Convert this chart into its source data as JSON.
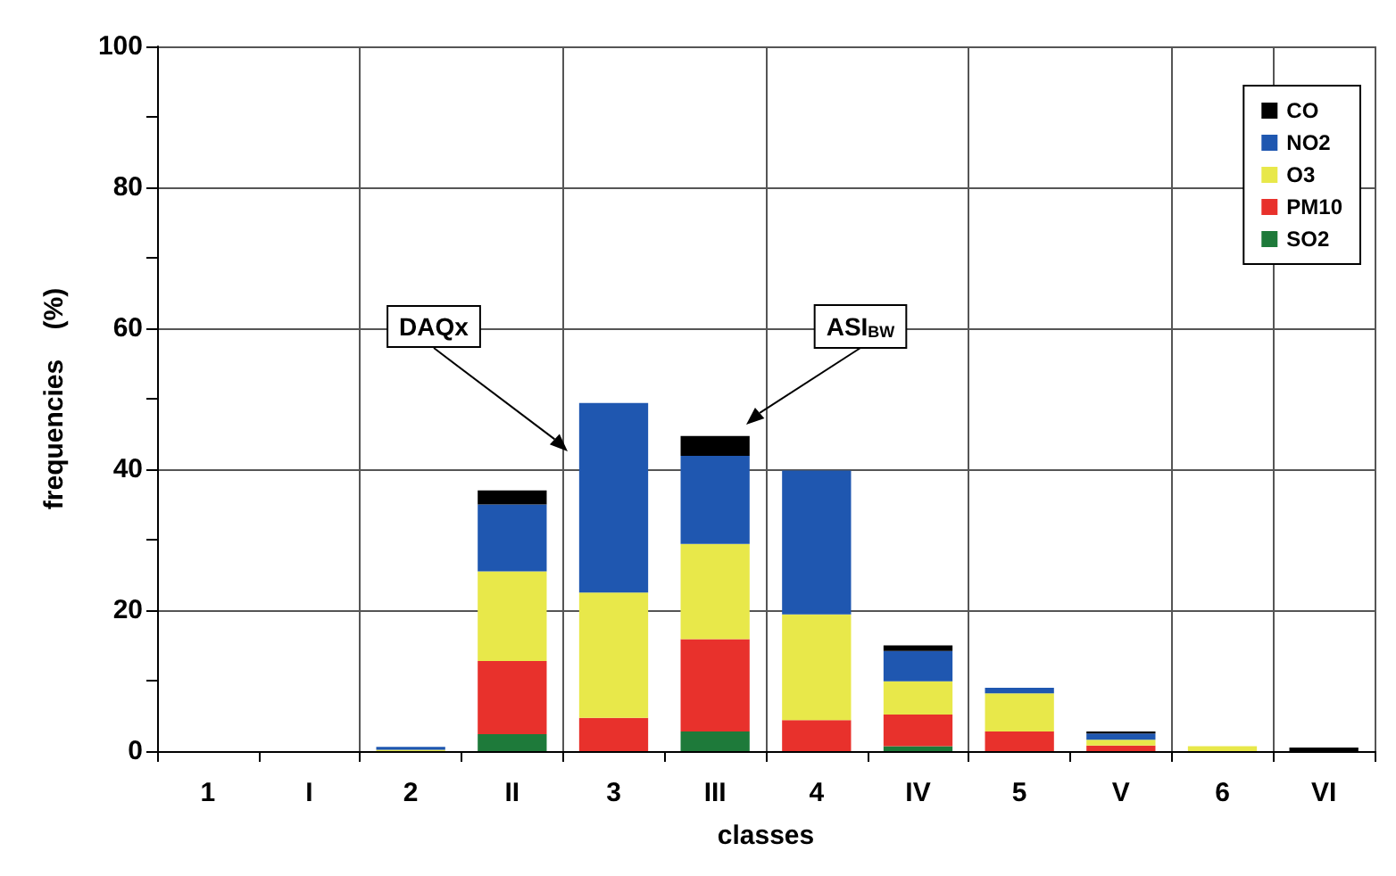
{
  "chart_data": {
    "type": "bar",
    "stacked": true,
    "xlabel": "classes",
    "ylabel": "frequencies    (%)",
    "categories": [
      "1",
      "I",
      "2",
      "II",
      "3",
      "III",
      "4",
      "IV",
      "5",
      "V",
      "6",
      "VI"
    ],
    "series": [
      {
        "name": "SO2",
        "color": "#1e7a3a",
        "values": [
          0,
          0,
          0,
          2.4,
          0,
          2.8,
          0,
          0.7,
          0,
          0,
          0,
          0
        ]
      },
      {
        "name": "PM10",
        "color": "#e8312c",
        "values": [
          0,
          0,
          0,
          10.4,
          4.7,
          13.1,
          4.4,
          4.5,
          2.8,
          0.8,
          0,
          0
        ]
      },
      {
        "name": "O3",
        "color": "#e8e84a",
        "values": [
          0,
          0,
          0.2,
          12.7,
          17.8,
          13.5,
          15.0,
          4.7,
          5.4,
          0.8,
          0.7,
          0
        ]
      },
      {
        "name": "NO2",
        "color": "#1f57b0",
        "values": [
          0,
          0,
          0.4,
          9.5,
          26.9,
          12.5,
          20.4,
          4.3,
          0.8,
          0.9,
          0,
          0
        ]
      },
      {
        "name": "CO",
        "color": "#000000",
        "values": [
          0,
          0,
          0,
          2.0,
          0,
          2.8,
          0,
          0.8,
          0,
          0.3,
          0,
          0.5
        ]
      }
    ],
    "ylim": [
      0,
      100
    ],
    "yticks": [
      0,
      {
        "value": 10,
        "label": null
      },
      20,
      {
        "value": 30,
        "label": null
      },
      40,
      {
        "value": 50,
        "label": null
      },
      60,
      {
        "value": 70,
        "label": null
      },
      80,
      {
        "value": 90,
        "label": null
      },
      100
    ],
    "grid": true,
    "legend": "top right",
    "annotations": [
      "DAQx",
      "ASI$_{BW}$"
    ]
  }
}
